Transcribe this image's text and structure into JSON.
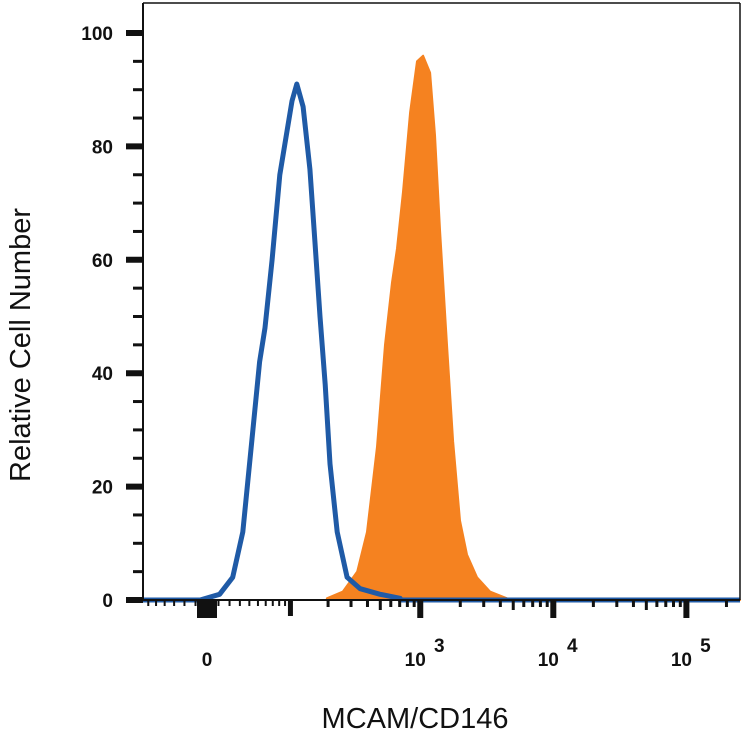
{
  "chart_data": {
    "type": "area",
    "title": "",
    "xlabel": "MCAM/CD146",
    "ylabel": "Relative Cell Number",
    "x_scale": "biexponential",
    "xlim": [
      -70,
      250000
    ],
    "ylim": [
      0,
      100
    ],
    "grid": false,
    "x_ticks": [
      {
        "value": 0,
        "label": "0",
        "exp": ""
      },
      {
        "value": 1000,
        "label": "10",
        "exp": "3"
      },
      {
        "value": 10000,
        "label": "10",
        "exp": "4"
      },
      {
        "value": 100000,
        "label": "10",
        "exp": "5"
      }
    ],
    "y_ticks": [
      0,
      20,
      40,
      60,
      80,
      100
    ],
    "y_tick_labels": [
      "0",
      "20",
      "40",
      "60",
      "80",
      "100"
    ],
    "series": [
      {
        "style": "filled",
        "color": "#f58220",
        "x": [
          196,
          260,
          334,
          397,
          472,
          543,
          613,
          668,
          741,
          838,
          945,
          1050,
          1185,
          1290,
          1410,
          1590,
          1765,
          1990,
          2245,
          2670,
          3345,
          4485
        ],
        "y": [
          0.3,
          1.5,
          5,
          12,
          27,
          45,
          56,
          62,
          72,
          86,
          95,
          96,
          93,
          82,
          65,
          45,
          28,
          14,
          8,
          4,
          1.5,
          0.3
        ]
      },
      {
        "style": "line",
        "color": "#1f5aa6",
        "x": [
          -6,
          11,
          23,
          33,
          44,
          52,
          59,
          69,
          81,
          94,
          103,
          113,
          127,
          144,
          158,
          173,
          190,
          207,
          235,
          280,
          352,
          498,
          705
        ],
        "y": [
          0,
          1,
          4,
          12,
          30,
          42,
          48,
          60,
          75,
          83,
          88,
          91,
          87,
          76,
          63,
          50,
          38,
          24,
          12,
          4,
          2,
          1,
          0.3
        ]
      }
    ]
  }
}
